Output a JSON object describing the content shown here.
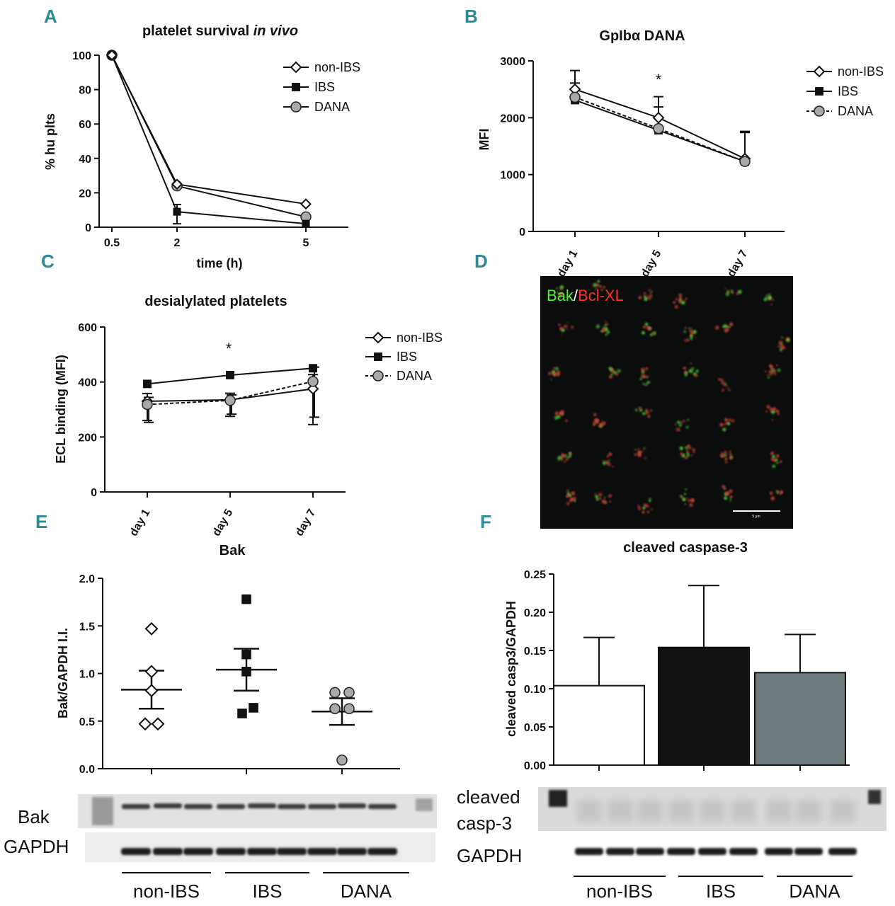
{
  "panels": {
    "A": {
      "letter": "A",
      "title": "platelet survival in vivo",
      "title_plain": "platelet survival ",
      "title_italic": "in vivo"
    },
    "B": {
      "letter": "B",
      "title": "GpIbα DANA"
    },
    "C": {
      "letter": "C",
      "title": "desialylated platelets"
    },
    "D": {
      "letter": "D",
      "label_green": "Bak",
      "label_sep": "/",
      "label_red": "Bcl-XL",
      "scale_label": "5 μm"
    },
    "E": {
      "letter": "E",
      "title": "Bak"
    },
    "F": {
      "letter": "F",
      "title": "cleaved caspase-3"
    }
  },
  "blots": {
    "E": {
      "row1": "Bak",
      "row2": "GAPDH",
      "groups": [
        "non-IBS",
        "IBS",
        "DANA"
      ]
    },
    "F": {
      "row1_line1": "cleaved",
      "row1_line2": "casp-3",
      "row2": "GAPDH",
      "groups": [
        "non-IBS",
        "IBS",
        "DANA"
      ]
    }
  },
  "colors": {
    "panel_letter": "#2e8b96",
    "ibs": "#111111",
    "dana": "#a9a9a9",
    "dana_bar": "#6f7a7c",
    "green": "#55ee33",
    "red": "#ff3322"
  },
  "chart_data": [
    {
      "id": "A",
      "type": "line",
      "title": "platelet survival in vivo",
      "xlabel": "time (h)",
      "ylabel": "% hu plts",
      "x": [
        0.5,
        2,
        5
      ],
      "x_tick_labels": [
        "0.5",
        "2",
        "5"
      ],
      "ylim": [
        0,
        100
      ],
      "y_ticks": [
        0,
        20,
        40,
        60,
        80,
        100
      ],
      "legend_position": "top-right",
      "series": [
        {
          "name": "non-IBS",
          "marker": "diamond-open",
          "values": [
            100,
            25,
            13.5
          ],
          "err": [
            0,
            0,
            0
          ]
        },
        {
          "name": "IBS",
          "marker": "square-filled",
          "values": [
            100,
            9,
            2
          ],
          "err": [
            0,
            7,
            0
          ]
        },
        {
          "name": "DANA",
          "marker": "circle-gray",
          "values": [
            100,
            24,
            6
          ],
          "err": [
            0,
            0,
            0
          ]
        }
      ]
    },
    {
      "id": "B",
      "type": "line",
      "title": "GpIbα DANA",
      "ylabel": "MFI",
      "categories": [
        "day 1",
        "day 5",
        "day 7"
      ],
      "ylim": [
        0,
        3000
      ],
      "y_ticks": [
        0,
        1000,
        2000,
        3000
      ],
      "legend_position": "top-right",
      "annotations": [
        {
          "text": "*",
          "category": "day 5"
        }
      ],
      "series": [
        {
          "name": "non-IBS",
          "marker": "diamond-open",
          "values": [
            2500,
            2000,
            1280
          ],
          "err": [
            330,
            370,
            480
          ]
        },
        {
          "name": "IBS",
          "marker": "square-filled",
          "values": [
            2310,
            1780,
            1230
          ],
          "err": [
            0,
            0,
            0
          ]
        },
        {
          "name": "DANA",
          "marker": "circle-gray",
          "dashed": true,
          "values": [
            2360,
            1810,
            1230
          ],
          "err": [
            250,
            380,
            510
          ]
        }
      ]
    },
    {
      "id": "C",
      "type": "line",
      "title": "desialylated platelets",
      "ylabel": "ECL binding (MFI)",
      "categories": [
        "day 1",
        "day 5",
        "day 7"
      ],
      "ylim": [
        0,
        600
      ],
      "y_ticks": [
        0,
        200,
        400,
        600
      ],
      "legend_position": "top-right",
      "annotations": [
        {
          "text": "*",
          "category": "day 5"
        }
      ],
      "series": [
        {
          "name": "non-IBS",
          "marker": "diamond-open",
          "values": [
            330,
            335,
            375
          ],
          "err": [
            70,
            60,
            130
          ]
        },
        {
          "name": "IBS",
          "marker": "square-filled",
          "values": [
            393,
            425,
            450
          ],
          "err": [
            0,
            0,
            0
          ]
        },
        {
          "name": "DANA",
          "marker": "circle-gray",
          "dashed": true,
          "values": [
            318,
            333,
            402
          ],
          "err": [
            65,
            50,
            130
          ]
        }
      ]
    },
    {
      "id": "E",
      "type": "scatter",
      "title": "Bak",
      "ylabel": "Bak/GAPDH I.I.",
      "categories": [
        "non-IBS",
        "IBS",
        "DANA"
      ],
      "ylim": [
        0,
        2.0
      ],
      "y_ticks": [
        "0.0",
        "0.5",
        "1.0",
        "1.5",
        "2.0"
      ],
      "series": [
        {
          "name": "non-IBS",
          "marker": "diamond-open",
          "points": [
            1.47,
            1.02,
            0.82,
            0.47,
            0.47
          ],
          "mean": 0.83,
          "sem": 0.2
        },
        {
          "name": "IBS",
          "marker": "square-filled",
          "points": [
            1.78,
            1.2,
            1.02,
            0.64,
            0.58
          ],
          "mean": 1.04,
          "sem": 0.22
        },
        {
          "name": "DANA",
          "marker": "circle-gray",
          "points": [
            0.8,
            0.8,
            0.63,
            0.63,
            0.09
          ],
          "mean": 0.6,
          "sem": 0.14
        }
      ]
    },
    {
      "id": "F",
      "type": "bar",
      "title": "cleaved caspase-3",
      "ylabel": "cleaved casp3/GAPDH",
      "categories": [
        "non-IBS",
        "IBS",
        "DANA"
      ],
      "ylim": [
        0,
        0.25
      ],
      "y_ticks": [
        "0.00",
        "0.05",
        "0.10",
        "0.15",
        "0.20",
        "0.25"
      ],
      "values": [
        0.104,
        0.154,
        0.121
      ],
      "err": [
        0.063,
        0.081,
        0.05
      ],
      "bar_colors": [
        "#ffffff",
        "#111111",
        "#6f7a7c"
      ]
    }
  ]
}
